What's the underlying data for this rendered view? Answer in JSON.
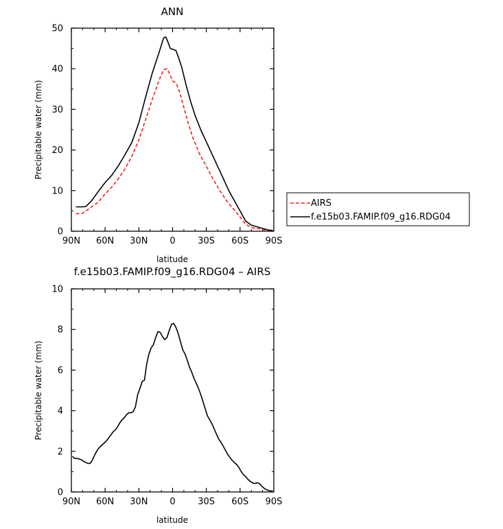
{
  "chart_data": [
    {
      "type": "line",
      "title": "ANN",
      "xlabel": "latitude",
      "ylabel": "Precipitable water (mm)",
      "xlim": [
        90,
        -90
      ],
      "ylim": [
        0,
        50
      ],
      "x_ticks": [
        90,
        60,
        30,
        0,
        -30,
        -60,
        -90
      ],
      "x_tick_labels": [
        "90N",
        "60N",
        "30N",
        "0",
        "30S",
        "60S",
        "90S"
      ],
      "y_ticks": [
        0,
        10,
        20,
        30,
        40,
        50
      ],
      "y_tick_labels": [
        "0",
        "10",
        "20",
        "30",
        "40",
        "50"
      ],
      "grid": false,
      "legend_position": "right",
      "series": [
        {
          "name": "AIRS",
          "color": "#e8221c",
          "dash": "dashed",
          "x": [
            86,
            80,
            78,
            72,
            66,
            60,
            54,
            48,
            42,
            36,
            30,
            24,
            18,
            12,
            8,
            5,
            3,
            0,
            -3,
            -6,
            -10,
            -14,
            -18,
            -24,
            -30,
            -36,
            -42,
            -48,
            -54,
            -60,
            -65,
            -70,
            -75,
            -80,
            -85,
            -89
          ],
          "y": [
            4.3,
            4.4,
            4.8,
            6.0,
            7.2,
            9.2,
            10.9,
            13.0,
            15.5,
            18.6,
            22.5,
            27.5,
            32.5,
            37.2,
            39.8,
            40.0,
            39.0,
            37.0,
            36.5,
            34.5,
            30.5,
            26.5,
            23.0,
            19.0,
            16.0,
            12.8,
            10.0,
            7.5,
            5.5,
            3.5,
            1.7,
            0.9,
            0.7,
            0.4,
            0.2,
            0.1
          ]
        },
        {
          "name": "f.e15b03.FAMIP.f09_g16.RDG04",
          "color": "#000000",
          "dash": "solid",
          "x": [
            86,
            80,
            77,
            72,
            66,
            60,
            54,
            48,
            42,
            36,
            30,
            24,
            18,
            12,
            8,
            6,
            4,
            2,
            0,
            -3,
            -5,
            -8,
            -12,
            -16,
            -20,
            -25,
            -30,
            -35,
            -40,
            -45,
            -50,
            -55,
            -60,
            -65,
            -70,
            -75,
            -80,
            -85,
            -89
          ],
          "y": [
            6.0,
            6.0,
            6.1,
            7.5,
            9.8,
            12.0,
            13.8,
            16.2,
            19.0,
            22.0,
            26.7,
            33.0,
            39.0,
            44.0,
            47.6,
            47.8,
            46.5,
            45.0,
            44.8,
            44.5,
            43.0,
            40.5,
            36.0,
            32.0,
            28.5,
            25.0,
            22.0,
            19.0,
            16.0,
            13.0,
            10.0,
            7.5,
            5.0,
            2.5,
            1.5,
            1.1,
            0.7,
            0.3,
            0.2
          ]
        }
      ]
    },
    {
      "type": "line",
      "title": "f.e15b03.FAMIP.f09_g16.RDG04 – AIRS",
      "xlabel": "latitude",
      "ylabel": "Precipitable water (mm)",
      "xlim": [
        90,
        -90
      ],
      "ylim": [
        0,
        10
      ],
      "x_ticks": [
        90,
        60,
        30,
        0,
        -30,
        -60,
        -90
      ],
      "x_tick_labels": [
        "90N",
        "60N",
        "30N",
        "0",
        "30S",
        "60S",
        "90S"
      ],
      "y_ticks": [
        0,
        2,
        4,
        6,
        8,
        10
      ],
      "y_tick_labels": [
        "0",
        "2",
        "4",
        "6",
        "8",
        "10"
      ],
      "grid": false,
      "series": [
        {
          "color": "#000000",
          "dash": "solid",
          "x": [
            89,
            87,
            85,
            83,
            81,
            79,
            77,
            75,
            73,
            71,
            69,
            67,
            65,
            63,
            61,
            59,
            57,
            55,
            53,
            51,
            49,
            47,
            45,
            43,
            41,
            39,
            37,
            35,
            33,
            31,
            29,
            27,
            25,
            23,
            21,
            19,
            17,
            15,
            13,
            11,
            9,
            7,
            5,
            3,
            1,
            -1,
            -3,
            -5,
            -7,
            -9,
            -11,
            -13,
            -15,
            -17,
            -19,
            -21,
            -23,
            -25,
            -27,
            -29,
            -31,
            -33,
            -35,
            -37,
            -39,
            -41,
            -43,
            -45,
            -47,
            -49,
            -51,
            -53,
            -55,
            -57,
            -59,
            -61,
            -63,
            -65,
            -67,
            -69,
            -71,
            -73,
            -75,
            -77,
            -79,
            -81,
            -83,
            -85,
            -87,
            -89
          ],
          "y": [
            1.75,
            1.65,
            1.65,
            1.62,
            1.58,
            1.5,
            1.45,
            1.4,
            1.42,
            1.6,
            1.85,
            2.05,
            2.2,
            2.3,
            2.4,
            2.5,
            2.65,
            2.8,
            2.95,
            3.05,
            3.2,
            3.4,
            3.55,
            3.65,
            3.8,
            3.9,
            3.9,
            3.95,
            4.2,
            4.8,
            5.1,
            5.45,
            5.5,
            6.3,
            6.8,
            7.1,
            7.25,
            7.6,
            7.9,
            7.85,
            7.65,
            7.5,
            7.6,
            7.95,
            8.25,
            8.3,
            8.1,
            7.8,
            7.4,
            7.0,
            6.8,
            6.5,
            6.15,
            5.9,
            5.6,
            5.35,
            5.1,
            4.8,
            4.45,
            4.1,
            3.75,
            3.55,
            3.35,
            3.1,
            2.85,
            2.6,
            2.45,
            2.25,
            2.05,
            1.85,
            1.7,
            1.55,
            1.45,
            1.35,
            1.2,
            1.0,
            0.85,
            0.75,
            0.62,
            0.52,
            0.45,
            0.42,
            0.45,
            0.42,
            0.3,
            0.2,
            0.12,
            0.08,
            0.05,
            0.05
          ]
        }
      ]
    }
  ]
}
